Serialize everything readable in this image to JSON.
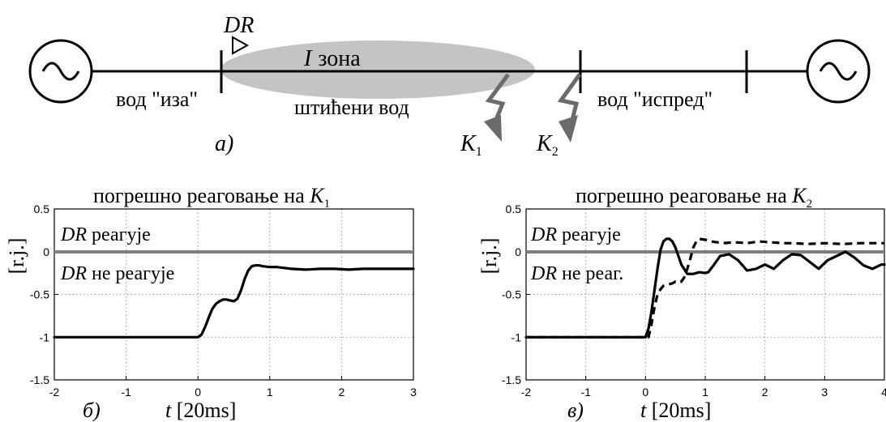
{
  "diagram": {
    "labels": {
      "dr": "DR",
      "zone_roman": "I",
      "zone_word": "зона",
      "line_behind": "вод \"иза\"",
      "protected_line": "штићени вод",
      "line_ahead": "вод \"испред\"",
      "k1_base": "K",
      "k1_sub": "1",
      "k2_base": "K",
      "k2_sub": "2",
      "panel_a": "а)"
    }
  },
  "chart_data": [
    {
      "type": "line",
      "title_text": "погрешно реаговање на ",
      "title_k": "K",
      "title_sub": "1",
      "ylabel": "[r.j.]",
      "xlabel_var": "t",
      "xlabel_unit": " [20ms]",
      "panel_label": "б)",
      "xlim": [
        -2,
        3
      ],
      "ylim": [
        -1.5,
        0.5
      ],
      "xticks": [
        "-2",
        "-1",
        "0",
        "1",
        "2",
        "3"
      ],
      "yticks": [
        "0.5",
        "0",
        "-0.5",
        "-1",
        "-1.5"
      ],
      "annotation_above_a": "DR",
      "annotation_above_b": " реагује",
      "annotation_below_a": "DR",
      "annotation_below_b": " не реагује",
      "grid": true,
      "series": [
        {
          "style": "solid",
          "x": [
            -2,
            0,
            0.05,
            0.1,
            0.15,
            0.2,
            0.25,
            0.3,
            0.35,
            0.4,
            0.45,
            0.5,
            0.55,
            0.6,
            0.65,
            0.7,
            0.75,
            0.8,
            0.85,
            0.9,
            1.0,
            1.1,
            1.2,
            1.3,
            1.5,
            1.7,
            1.9,
            2.1,
            2.3,
            2.5,
            2.7,
            3.0
          ],
          "y": [
            -1,
            -1,
            -0.97,
            -0.88,
            -0.77,
            -0.67,
            -0.61,
            -0.58,
            -0.56,
            -0.56,
            -0.57,
            -0.58,
            -0.55,
            -0.45,
            -0.32,
            -0.22,
            -0.17,
            -0.16,
            -0.16,
            -0.17,
            -0.18,
            -0.18,
            -0.19,
            -0.2,
            -0.21,
            -0.2,
            -0.2,
            -0.21,
            -0.2,
            -0.2,
            -0.2,
            -0.2
          ]
        }
      ]
    },
    {
      "type": "line",
      "title_text": "погрешно реаговање на ",
      "title_k": "K",
      "title_sub": "2",
      "ylabel": "[r.j.]",
      "xlabel_var": "t",
      "xlabel_unit": " [20ms]",
      "panel_label": "в)",
      "xlim": [
        -2,
        4
      ],
      "ylim": [
        -1.5,
        0.5
      ],
      "xticks": [
        "-2",
        "-1",
        "0",
        "1",
        "2",
        "3",
        "4"
      ],
      "yticks": [
        "0.5",
        "0",
        "-0.5",
        "-1",
        "-1.5"
      ],
      "annotation_above_a": "DR",
      "annotation_above_b": " реагује",
      "annotation_below_a": "DR",
      "annotation_below_b": " не реаг.",
      "grid": true,
      "series": [
        {
          "style": "solid",
          "x": [
            -2,
            0,
            0.05,
            0.1,
            0.15,
            0.2,
            0.25,
            0.3,
            0.35,
            0.4,
            0.45,
            0.5,
            0.55,
            0.6,
            0.7,
            0.8,
            0.9,
            1.0,
            1.05,
            1.15,
            1.25,
            1.4,
            1.55,
            1.7,
            1.85,
            2.0,
            2.15,
            2.3,
            2.45,
            2.6,
            2.75,
            2.9,
            3.05,
            3.2,
            3.35,
            3.5,
            3.65,
            3.8,
            3.95,
            4.0
          ],
          "y": [
            -1,
            -1,
            -0.9,
            -0.7,
            -0.45,
            -0.2,
            0.02,
            0.12,
            0.15,
            0.15,
            0.12,
            0.05,
            -0.05,
            -0.15,
            -0.26,
            -0.26,
            -0.24,
            -0.25,
            -0.24,
            -0.15,
            -0.05,
            -0.03,
            -0.1,
            -0.22,
            -0.2,
            -0.15,
            -0.2,
            -0.1,
            -0.03,
            -0.04,
            -0.12,
            -0.2,
            -0.1,
            -0.05,
            0.0,
            -0.07,
            -0.16,
            -0.2,
            -0.15,
            -0.15
          ]
        },
        {
          "style": "dashed",
          "x": [
            -2,
            0.05,
            0.1,
            0.15,
            0.2,
            0.25,
            0.3,
            0.35,
            0.4,
            0.45,
            0.5,
            0.55,
            0.6,
            0.65,
            0.7,
            0.75,
            0.8,
            0.85,
            0.9,
            1.0,
            1.1,
            1.3,
            1.5,
            1.7,
            1.9,
            2.1,
            2.3,
            2.5,
            2.7,
            3.0,
            3.3,
            3.6,
            4.0
          ],
          "y": [
            -1,
            -1,
            -0.85,
            -0.65,
            -0.5,
            -0.44,
            -0.4,
            -0.39,
            -0.38,
            -0.37,
            -0.35,
            -0.36,
            -0.35,
            -0.3,
            -0.2,
            -0.08,
            0.05,
            0.12,
            0.15,
            0.14,
            0.12,
            0.1,
            0.11,
            0.1,
            0.12,
            0.11,
            0.1,
            0.1,
            0.09,
            0.1,
            0.09,
            0.1,
            0.1
          ]
        }
      ]
    }
  ]
}
